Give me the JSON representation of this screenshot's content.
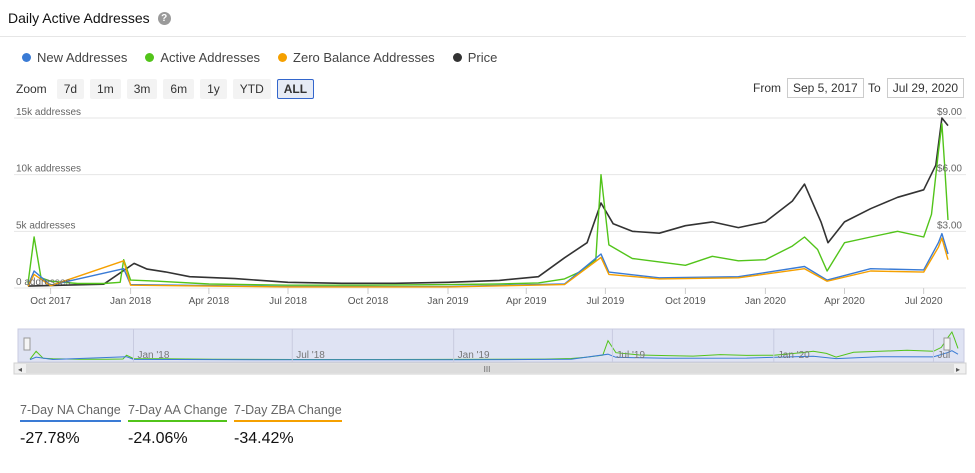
{
  "title": "Daily Active Addresses",
  "help_icon": "?",
  "legend": [
    {
      "label": "New Addresses",
      "color": "#3a7bd5"
    },
    {
      "label": "Active Addresses",
      "color": "#52c41a"
    },
    {
      "label": "Zero Balance Addresses",
      "color": "#f5a000"
    },
    {
      "label": "Price",
      "color": "#333333"
    }
  ],
  "zoom": {
    "label": "Zoom",
    "buttons": [
      "7d",
      "1m",
      "3m",
      "6m",
      "1y",
      "YTD",
      "ALL"
    ],
    "active": "ALL"
  },
  "range": {
    "from_label": "From",
    "from_value": "Sep 5, 2017",
    "to_label": "To",
    "to_value": "Jul 29, 2020"
  },
  "chart_data": {
    "type": "line",
    "y_axis_left": {
      "ticks": [
        "0 addresses",
        "5k addresses",
        "10k addresses",
        "15k addresses"
      ],
      "range": [
        0,
        15000
      ]
    },
    "y_axis_right": {
      "ticks": [
        "$3.00",
        "$6.00",
        "$9.00"
      ],
      "range": [
        0,
        9
      ]
    },
    "x_ticks": [
      "Oct 2017",
      "Jan 2018",
      "Apr 2018",
      "Jul 2018",
      "Oct 2018",
      "Jan 2019",
      "Apr 2019",
      "Jul 2019",
      "Oct 2019",
      "Jan 2020",
      "Apr 2020",
      "Jul 2020"
    ],
    "x_domain": [
      "2017-09-05",
      "2020-07-29"
    ],
    "grid": true,
    "series": [
      {
        "name": "Price",
        "axis": "right",
        "color": "#333333",
        "x": [
          "2017-09-05",
          "2017-10-15",
          "2017-12-01",
          "2018-01-05",
          "2018-01-20",
          "2018-02-10",
          "2018-03-10",
          "2018-05-01",
          "2018-07-01",
          "2018-09-01",
          "2018-11-01",
          "2019-01-01",
          "2019-03-01",
          "2019-04-15",
          "2019-05-15",
          "2019-06-10",
          "2019-06-26",
          "2019-07-10",
          "2019-08-01",
          "2019-09-01",
          "2019-10-01",
          "2019-11-01",
          "2019-12-01",
          "2020-01-01",
          "2020-02-01",
          "2020-02-15",
          "2020-03-05",
          "2020-03-13",
          "2020-04-01",
          "2020-05-01",
          "2020-06-01",
          "2020-07-01",
          "2020-07-15",
          "2020-07-22",
          "2020-07-29"
        ],
        "values": [
          0.1,
          0.15,
          0.2,
          1.3,
          1.0,
          0.85,
          0.6,
          0.5,
          0.3,
          0.25,
          0.25,
          0.3,
          0.4,
          0.6,
          1.6,
          2.4,
          4.5,
          3.4,
          3.0,
          2.9,
          3.3,
          3.5,
          3.2,
          3.5,
          4.6,
          5.5,
          3.5,
          2.4,
          3.5,
          4.2,
          4.8,
          5.2,
          6.5,
          9.0,
          8.6
        ]
      },
      {
        "name": "Active Addresses",
        "axis": "left",
        "color": "#52c41a",
        "x": [
          "2017-09-05",
          "2017-09-12",
          "2017-09-20",
          "2017-10-01",
          "2017-11-01",
          "2017-12-01",
          "2017-12-20",
          "2017-12-24",
          "2018-01-01",
          "2018-02-01",
          "2018-04-01",
          "2018-07-01",
          "2018-10-01",
          "2019-01-01",
          "2019-03-01",
          "2019-04-15",
          "2019-05-15",
          "2019-06-01",
          "2019-06-20",
          "2019-06-26",
          "2019-07-05",
          "2019-08-01",
          "2019-09-01",
          "2019-10-01",
          "2019-11-01",
          "2019-12-01",
          "2020-01-01",
          "2020-02-01",
          "2020-02-15",
          "2020-03-01",
          "2020-03-12",
          "2020-04-01",
          "2020-05-01",
          "2020-06-01",
          "2020-07-01",
          "2020-07-10",
          "2020-07-18",
          "2020-07-22",
          "2020-07-25",
          "2020-07-29"
        ],
        "values": [
          400,
          4500,
          900,
          600,
          400,
          400,
          500,
          2500,
          700,
          600,
          350,
          250,
          250,
          300,
          350,
          450,
          800,
          1400,
          2500,
          10000,
          3800,
          2600,
          2300,
          2000,
          2800,
          2400,
          2500,
          3700,
          4500,
          3400,
          1500,
          4000,
          4500,
          5000,
          4500,
          6500,
          12000,
          14500,
          11000,
          6000
        ]
      },
      {
        "name": "New Addresses",
        "axis": "left",
        "color": "#3a7bd5",
        "x": [
          "2017-09-05",
          "2017-09-12",
          "2017-10-01",
          "2017-12-24",
          "2018-01-01",
          "2018-07-01",
          "2019-01-01",
          "2019-05-15",
          "2019-06-26",
          "2019-07-05",
          "2019-09-01",
          "2019-12-01",
          "2020-02-15",
          "2020-03-12",
          "2020-05-01",
          "2020-07-01",
          "2020-07-18",
          "2020-07-22",
          "2020-07-29"
        ],
        "values": [
          200,
          1500,
          250,
          1700,
          300,
          120,
          120,
          350,
          3000,
          1400,
          900,
          1000,
          1900,
          700,
          1700,
          1600,
          4000,
          4800,
          3000
        ]
      },
      {
        "name": "Zero Balance Addresses",
        "axis": "left",
        "color": "#f5a000",
        "x": [
          "2017-09-05",
          "2017-09-12",
          "2017-10-01",
          "2017-12-24",
          "2018-01-01",
          "2018-07-01",
          "2019-01-01",
          "2019-05-15",
          "2019-06-26",
          "2019-07-05",
          "2019-09-01",
          "2019-12-01",
          "2020-02-15",
          "2020-03-12",
          "2020-05-01",
          "2020-07-01",
          "2020-07-18",
          "2020-07-22",
          "2020-07-29"
        ],
        "values": [
          150,
          1200,
          200,
          2400,
          250,
          100,
          100,
          300,
          2700,
          1200,
          800,
          900,
          1700,
          600,
          1500,
          1400,
          3600,
          4400,
          2500
        ]
      }
    ]
  },
  "navigator": {
    "ticks": [
      "Jan '18",
      "Jul '18",
      "Jan '19",
      "Jul '19",
      "Jan '20",
      "Jul"
    ],
    "scroll_grip": "III"
  },
  "stats": [
    {
      "label": "7-Day NA Change",
      "value": "-27.78%",
      "color": "#3a7bd5"
    },
    {
      "label": "7-Day AA Change",
      "value": "-24.06%",
      "color": "#52c41a"
    },
    {
      "label": "7-Day ZBA Change",
      "value": "-34.42%",
      "color": "#f5a000"
    }
  ]
}
